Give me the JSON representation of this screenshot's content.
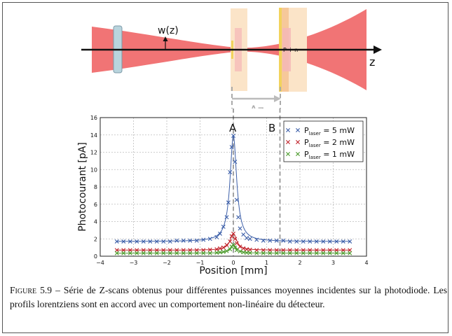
{
  "schematic": {
    "beam_label": "w(z)",
    "z_label": "z",
    "pin_label": "P i n",
    "dz_label": "Δz",
    "colors": {
      "beam": "#f17475",
      "lens": "#b9d4dd",
      "slab_dark": "#f6c89a",
      "slab_light": "#fbe4c8",
      "slab_pink": "#f5b7b7",
      "edge": "#f2d35c",
      "grey": "#c8c8c8"
    }
  },
  "chart_data": {
    "type": "scatter",
    "title": "",
    "xlabel": "Position [mm]",
    "ylabel": "Photocourant [pA]",
    "xlim": [
      -4,
      4
    ],
    "ylim": [
      0,
      16
    ],
    "xticks": [
      "−4",
      "−3",
      "−2",
      "−1",
      "0",
      "1",
      "2",
      "3",
      "4"
    ],
    "yticks": [
      "0",
      "2",
      "4",
      "6",
      "8",
      "10",
      "12",
      "14",
      "16"
    ],
    "grid": true,
    "legend_position": "top-right",
    "markers": {
      "A": "A",
      "B": "B",
      "B_position": 1.4
    },
    "series": [
      {
        "name": "P_laser = 5 mW",
        "legend_base": "P",
        "legend_sub": "laser",
        "legend_rest": " = 5 mW",
        "color": "#3b5ea8",
        "baseline": 1.7,
        "x": [
          -3.5,
          -3.3,
          -3.1,
          -2.9,
          -2.7,
          -2.5,
          -2.3,
          -2.1,
          -1.9,
          -1.7,
          -1.5,
          -1.3,
          -1.1,
          -0.9,
          -0.7,
          -0.5,
          -0.4,
          -0.3,
          -0.2,
          -0.15,
          -0.1,
          -0.05,
          0.0,
          0.05,
          0.1,
          0.15,
          0.2,
          0.3,
          0.4,
          0.5,
          0.7,
          0.9,
          1.1,
          1.3,
          1.5,
          1.7,
          1.9,
          2.1,
          2.3,
          2.5,
          2.7,
          2.9,
          3.1,
          3.3,
          3.5
        ],
        "y": [
          1.7,
          1.7,
          1.7,
          1.7,
          1.7,
          1.7,
          1.7,
          1.7,
          1.7,
          1.8,
          1.8,
          1.8,
          1.8,
          1.9,
          2.0,
          2.2,
          2.6,
          3.4,
          4.5,
          6.2,
          9.7,
          12.6,
          13.9,
          10.9,
          6.5,
          4.5,
          3.2,
          2.5,
          2.1,
          2.0,
          1.9,
          1.8,
          1.8,
          1.8,
          1.8,
          1.7,
          1.7,
          1.7,
          1.7,
          1.7,
          1.7,
          1.7,
          1.7,
          1.7,
          1.7
        ]
      },
      {
        "name": "P_laser = 2 mW",
        "legend_base": "P",
        "legend_sub": "laser",
        "legend_rest": " = 2 mW",
        "color": "#c0232a",
        "baseline": 0.7,
        "x": [
          -3.5,
          -3.3,
          -3.1,
          -2.9,
          -2.7,
          -2.5,
          -2.3,
          -2.1,
          -1.9,
          -1.7,
          -1.5,
          -1.3,
          -1.1,
          -0.9,
          -0.7,
          -0.5,
          -0.4,
          -0.3,
          -0.2,
          -0.1,
          -0.05,
          0.0,
          0.05,
          0.1,
          0.2,
          0.3,
          0.4,
          0.5,
          0.7,
          0.9,
          1.1,
          1.3,
          1.5,
          1.7,
          1.9,
          2.1,
          2.3,
          2.5,
          2.7,
          2.9,
          3.1,
          3.3,
          3.5
        ],
        "y": [
          0.7,
          0.7,
          0.7,
          0.7,
          0.7,
          0.7,
          0.7,
          0.7,
          0.7,
          0.7,
          0.7,
          0.7,
          0.7,
          0.7,
          0.75,
          0.8,
          0.9,
          1.0,
          1.3,
          1.7,
          2.3,
          2.6,
          2.0,
          1.5,
          1.1,
          0.9,
          0.8,
          0.75,
          0.7,
          0.7,
          0.7,
          0.7,
          0.7,
          0.7,
          0.7,
          0.7,
          0.7,
          0.7,
          0.7,
          0.7,
          0.7,
          0.7,
          0.7
        ]
      },
      {
        "name": "P_laser = 1 mW",
        "legend_base": "P",
        "legend_sub": "laser",
        "legend_rest": " = 1 mW",
        "color": "#4a9a2a",
        "baseline": 0.35,
        "x": [
          -3.5,
          -3.3,
          -3.1,
          -2.9,
          -2.7,
          -2.5,
          -2.3,
          -2.1,
          -1.9,
          -1.7,
          -1.5,
          -1.3,
          -1.1,
          -0.9,
          -0.7,
          -0.5,
          -0.4,
          -0.3,
          -0.2,
          -0.1,
          -0.05,
          0.0,
          0.05,
          0.1,
          0.2,
          0.3,
          0.4,
          0.5,
          0.7,
          0.9,
          1.1,
          1.3,
          1.5,
          1.7,
          1.9,
          2.1,
          2.3,
          2.5,
          2.7,
          2.9,
          3.1,
          3.3,
          3.5
        ],
        "y": [
          0.35,
          0.35,
          0.35,
          0.35,
          0.35,
          0.35,
          0.35,
          0.35,
          0.35,
          0.35,
          0.35,
          0.35,
          0.35,
          0.35,
          0.35,
          0.4,
          0.45,
          0.5,
          0.6,
          0.8,
          1.1,
          1.3,
          1.0,
          0.7,
          0.55,
          0.45,
          0.4,
          0.38,
          0.35,
          0.35,
          0.35,
          0.35,
          0.35,
          0.35,
          0.35,
          0.35,
          0.35,
          0.35,
          0.35,
          0.35,
          0.35,
          0.35,
          0.35
        ]
      }
    ]
  },
  "caption": {
    "label": "Figure 5.9",
    "text": " – Série de Z-scans obtenus pour différentes puissances moyennes incidentes sur la photodiode. Les profils lorentziens sont en accord avec un comportement non-linéaire du détecteur."
  }
}
